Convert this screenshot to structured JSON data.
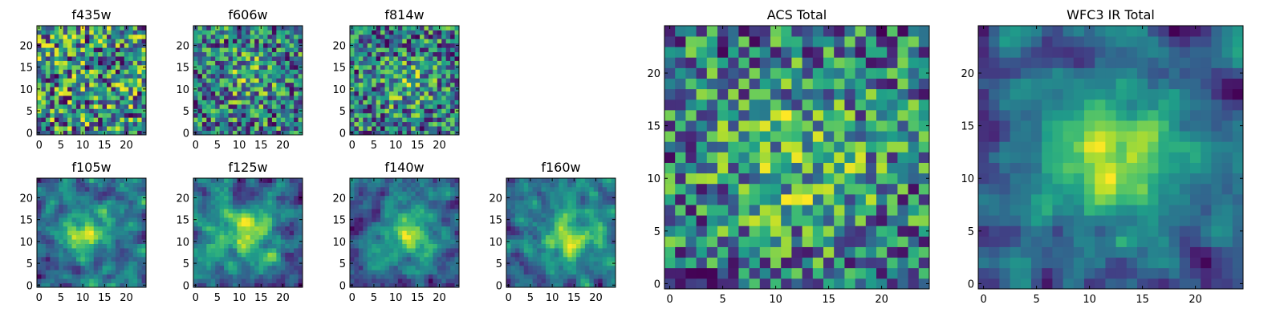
{
  "chart_data": [
    {
      "id": "f435w",
      "type": "heatmap",
      "title": "f435w",
      "seed": 11,
      "smooth": 0,
      "blobs": [],
      "xlim": [
        0,
        24
      ],
      "ylim": [
        0,
        24
      ],
      "xticks": [
        "0",
        "5",
        "10",
        "15",
        "20"
      ],
      "yticks": [
        "0",
        "5",
        "10",
        "15",
        "20"
      ],
      "colormap": "viridis"
    },
    {
      "id": "f606w",
      "type": "heatmap",
      "title": "f606w",
      "seed": 23,
      "smooth": 0,
      "blobs": [
        [
          12,
          13,
          4,
          0.25
        ]
      ],
      "xlim": [
        0,
        24
      ],
      "ylim": [
        0,
        24
      ],
      "xticks": [
        "0",
        "5",
        "10",
        "15",
        "20"
      ],
      "yticks": [
        "0",
        "5",
        "10",
        "15",
        "20"
      ],
      "colormap": "viridis"
    },
    {
      "id": "f814w",
      "type": "heatmap",
      "title": "f814w",
      "seed": 37,
      "smooth": 0,
      "blobs": [
        [
          13,
          11,
          4,
          0.25
        ]
      ],
      "xlim": [
        0,
        24
      ],
      "ylim": [
        0,
        24
      ],
      "xticks": [
        "0",
        "5",
        "10",
        "15",
        "20"
      ],
      "yticks": [
        "0",
        "5",
        "10",
        "15",
        "20"
      ],
      "colormap": "viridis"
    },
    {
      "id": "f105w",
      "type": "heatmap",
      "title": "f105w",
      "seed": 41,
      "smooth": 1,
      "blobs": [
        [
          11,
          12,
          4,
          0.4
        ]
      ],
      "xlim": [
        0,
        24
      ],
      "ylim": [
        0,
        24
      ],
      "xticks": [
        "0",
        "5",
        "10",
        "15",
        "20"
      ],
      "yticks": [
        "0",
        "5",
        "10",
        "15",
        "20"
      ],
      "colormap": "viridis"
    },
    {
      "id": "f125w",
      "type": "heatmap",
      "title": "f125w",
      "seed": 53,
      "smooth": 1,
      "blobs": [
        [
          12,
          12,
          4,
          0.4
        ]
      ],
      "xlim": [
        0,
        24
      ],
      "ylim": [
        0,
        24
      ],
      "xticks": [
        "0",
        "5",
        "10",
        "15",
        "20"
      ],
      "yticks": [
        "0",
        "5",
        "10",
        "15",
        "20"
      ],
      "colormap": "viridis"
    },
    {
      "id": "f140w",
      "type": "heatmap",
      "title": "f140w",
      "seed": 67,
      "smooth": 1,
      "blobs": [
        [
          13,
          12,
          4.5,
          0.45
        ]
      ],
      "xlim": [
        0,
        24
      ],
      "ylim": [
        0,
        24
      ],
      "xticks": [
        "0",
        "5",
        "10",
        "15",
        "20"
      ],
      "yticks": [
        "0",
        "5",
        "10",
        "15",
        "20"
      ],
      "colormap": "viridis"
    },
    {
      "id": "f160w",
      "type": "heatmap",
      "title": "f160w",
      "seed": 79,
      "smooth": 1,
      "blobs": [
        [
          14,
          11,
          4.5,
          0.45
        ]
      ],
      "xlim": [
        0,
        24
      ],
      "ylim": [
        0,
        24
      ],
      "xticks": [
        "0",
        "5",
        "10",
        "15",
        "20"
      ],
      "yticks": [
        "0",
        "5",
        "10",
        "15",
        "20"
      ],
      "colormap": "viridis"
    },
    {
      "id": "acs_total",
      "type": "heatmap",
      "title": "ACS Total",
      "seed": 97,
      "smooth": 0,
      "blobs": [
        [
          12,
          12,
          6,
          0.3
        ]
      ],
      "xlim": [
        0,
        24
      ],
      "ylim": [
        0,
        24
      ],
      "xticks": [
        "0",
        "5",
        "10",
        "15",
        "20"
      ],
      "yticks": [
        "0",
        "5",
        "10",
        "15",
        "20"
      ],
      "colormap": "viridis"
    },
    {
      "id": "wfc3_ir_total",
      "type": "heatmap",
      "title": "WFC3 IR Total",
      "seed": 113,
      "smooth": 1,
      "blobs": [
        [
          12,
          12,
          5,
          0.55
        ]
      ],
      "xlim": [
        0,
        24
      ],
      "ylim": [
        0,
        24
      ],
      "xticks": [
        "0",
        "5",
        "10",
        "15",
        "20"
      ],
      "yticks": [
        "0",
        "5",
        "10",
        "15",
        "20"
      ],
      "colormap": "viridis"
    }
  ]
}
